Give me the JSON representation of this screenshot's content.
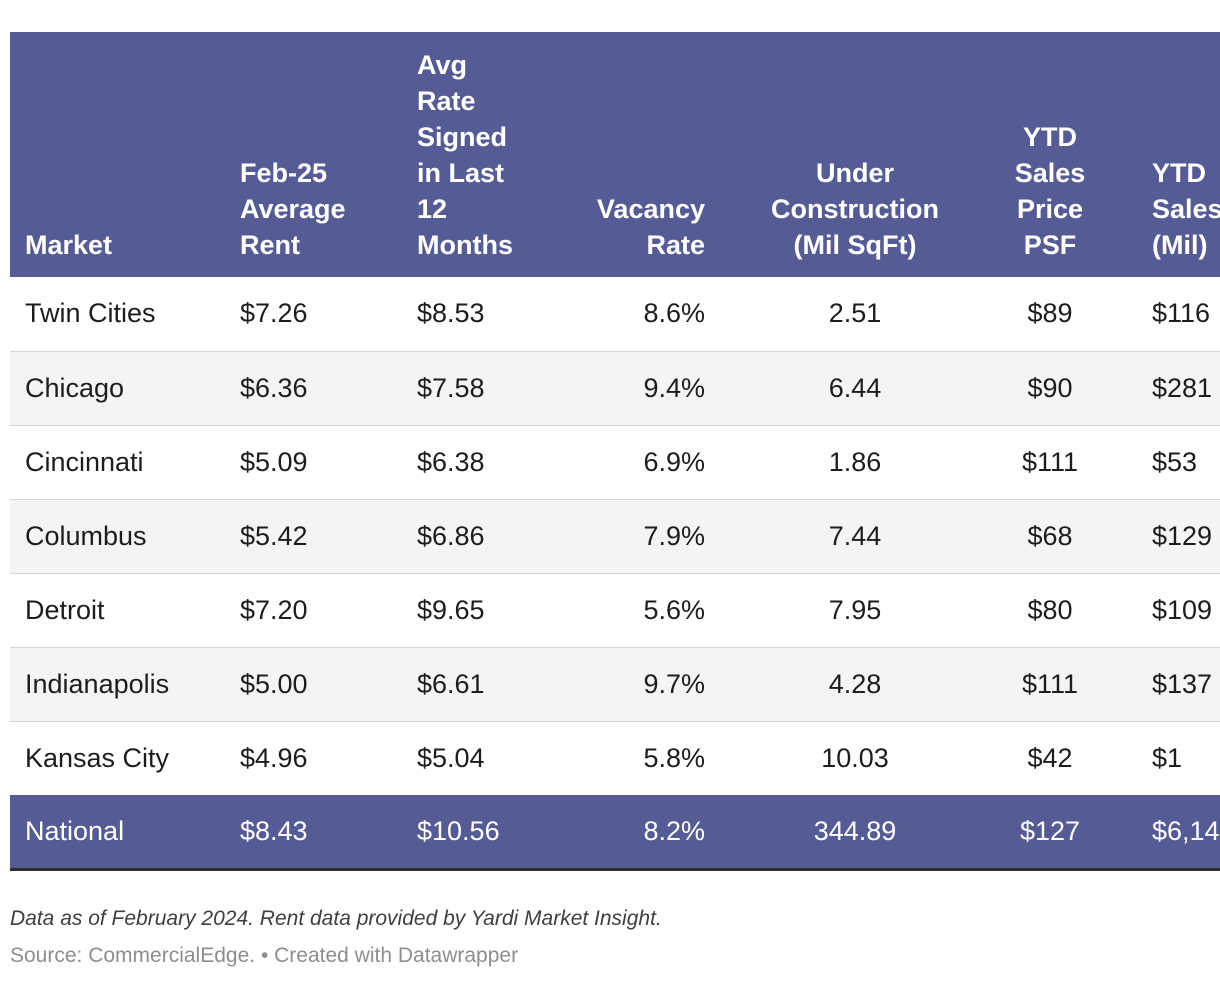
{
  "colors": {
    "header_bg": "#555C95",
    "total_row_bg": "#555C95",
    "header_text": "#FFFFFF",
    "body_text": "#1D1D1D",
    "stripe_bg": "#F4F4F4",
    "separator": "#D6D6D6",
    "bottom_border": "#2E2E2E",
    "notes_text": "#3F3F3F",
    "source_text": "#8E8E8E"
  },
  "chart_data": {
    "type": "table",
    "headers": [
      "Market",
      "Feb-25\nAverage\nRent",
      "Avg\nRate\nSigned\nin Last\n12\nMonths",
      "Vacancy\nRate",
      "Under\nConstruction\n(Mil SqFt)",
      "YTD\nSales\nPrice\nPSF",
      "YTD\nSales\n(Mil)"
    ],
    "rows": [
      {
        "highlight": false,
        "cells": [
          "Twin Cities",
          "$7.26",
          "$8.53",
          "8.6%",
          "2.51",
          "$89",
          "$116"
        ]
      },
      {
        "highlight": false,
        "cells": [
          "Chicago",
          "$6.36",
          "$7.58",
          "9.4%",
          "6.44",
          "$90",
          "$281"
        ]
      },
      {
        "highlight": false,
        "cells": [
          "Cincinnati",
          "$5.09",
          "$6.38",
          "6.9%",
          "1.86",
          "$111",
          "$53"
        ]
      },
      {
        "highlight": false,
        "cells": [
          "Columbus",
          "$5.42",
          "$6.86",
          "7.9%",
          "7.44",
          "$68",
          "$129"
        ]
      },
      {
        "highlight": false,
        "cells": [
          "Detroit",
          "$7.20",
          "$9.65",
          "5.6%",
          "7.95",
          "$80",
          "$109"
        ]
      },
      {
        "highlight": false,
        "cells": [
          "Indianapolis",
          "$5.00",
          "$6.61",
          "9.7%",
          "4.28",
          "$111",
          "$137"
        ]
      },
      {
        "highlight": false,
        "cells": [
          "Kansas City",
          "$4.96",
          "$5.04",
          "5.8%",
          "10.03",
          "$42",
          "$1"
        ]
      },
      {
        "highlight": true,
        "cells": [
          "National",
          "$8.43",
          "$10.56",
          "8.2%",
          "344.89",
          "$127",
          "$6,14"
        ]
      }
    ],
    "notes": "Data as of February 2024. Rent data provided by Yardi Market Insight.",
    "source": "Source: CommercialEdge.",
    "credit_separator": " • ",
    "credit": "Created with Datawrapper"
  }
}
